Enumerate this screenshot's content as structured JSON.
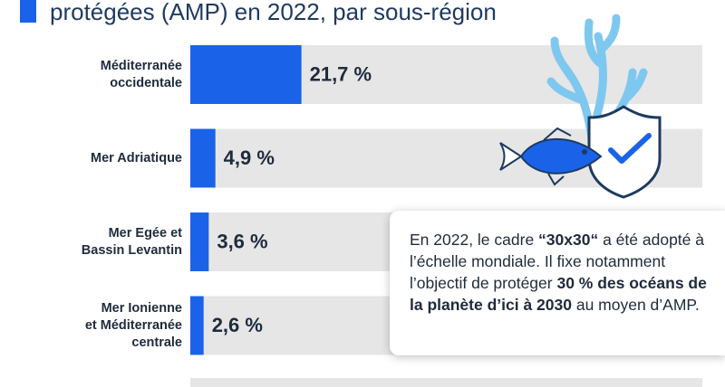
{
  "chart_data": {
    "type": "bar",
    "orientation": "horizontal",
    "title": "protégées (AMP) en 2022, par sous-région",
    "categories": [
      [
        "Méditerranée",
        "occidentale"
      ],
      [
        "Mer Adriatique"
      ],
      [
        "Mer Egée et",
        "Bassin Levantin"
      ],
      [
        "Mer Ionienne",
        "et Méditerranée",
        "centrale"
      ]
    ],
    "values": [
      21.7,
      4.9,
      3.6,
      2.6
    ],
    "value_labels": [
      "21,7 %",
      "4,9 %",
      "3,6 %",
      "2,6 %"
    ],
    "color": "#1a63e8",
    "xlim": [
      0,
      100
    ],
    "annotation": [
      {
        "text": "En 2022, le cadre ",
        "bold": false
      },
      {
        "text": "“30x30“",
        "bold": true
      },
      {
        "text": " a été adopté à l’échelle mondiale. Il fixe notamment l’objectif de protéger ",
        "bold": false
      },
      {
        "text": "30 % des océans de la planète d’ici à 2030",
        "bold": true
      },
      {
        "text": " au moyen d’AMP.",
        "bold": false
      }
    ]
  }
}
